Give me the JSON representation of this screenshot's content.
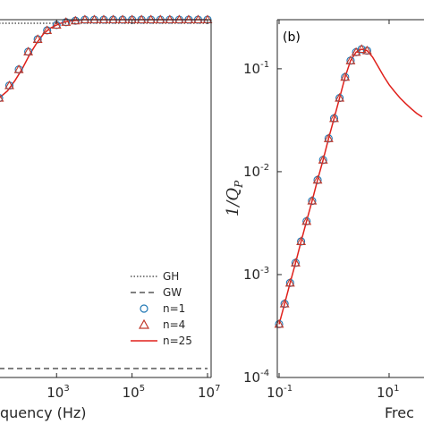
{
  "chart_data": [
    {
      "type": "line",
      "panel_label": "",
      "xlabel": "quency (Hz)",
      "ylabel": "",
      "x_scale": "log",
      "xlim": [
        30,
        10000000.0
      ],
      "ylim": [
        0,
        1.0
      ],
      "x_tick_values": [
        1000.0,
        100000.0,
        10000000.0
      ],
      "x_tick_labels": [
        {
          "base": "10",
          "exp": "3"
        },
        {
          "base": "10",
          "exp": "5"
        },
        {
          "base": "10",
          "exp": "7"
        }
      ],
      "legend": {
        "placement": "bottom-right",
        "entries": [
          {
            "label": "GH",
            "style": "dotted-line",
            "color": "#000000"
          },
          {
            "label": "GW",
            "style": "dashed-line",
            "color": "#000000"
          },
          {
            "label": "n=1",
            "style": "circle",
            "color": "#1f77b4"
          },
          {
            "label": "n=4",
            "style": "triangle",
            "color": "#c0392b"
          },
          {
            "label": "n=25",
            "style": "solid-line",
            "color": "#e0201b"
          }
        ]
      },
      "series": [
        {
          "name": "GH",
          "x": [
            30,
            10000000.0
          ],
          "y": [
            0.99,
            0.99
          ]
        },
        {
          "name": "GW",
          "x": [
            30,
            10000000.0
          ],
          "y": [
            0.02,
            0.02
          ]
        },
        {
          "name": "n=25",
          "x": [
            30,
            50,
            80,
            120,
            200,
            300,
            450,
            650,
            1000,
            1500,
            2500,
            5000,
            10000.0,
            100000.0,
            1000000.0,
            10000000.0
          ],
          "y": [
            0.78,
            0.8,
            0.83,
            0.86,
            0.905,
            0.935,
            0.96,
            0.975,
            0.985,
            0.993,
            0.997,
            1.0,
            1.0,
            1.0,
            1.0,
            1.0
          ]
        },
        {
          "name": "n=1",
          "x": [
            30,
            56.2,
            100,
            177.8,
            316.2,
            562.3,
            1000,
            1778,
            3162,
            5623,
            10000.0,
            17780.0,
            31620.0,
            56230.0,
            100000.0,
            177800.0,
            316200.0,
            562300.0,
            1000000.0,
            1778000.0,
            3162000.0,
            5623000.0,
            10000000.0
          ],
          "y": [
            0.78,
            0.815,
            0.86,
            0.91,
            0.945,
            0.97,
            0.985,
            0.993,
            0.997,
            1.0,
            1.0,
            1.0,
            1.0,
            1.0,
            1.0,
            1.0,
            1.0,
            1.0,
            1.0,
            1.0,
            1.0,
            1.0,
            1.0
          ]
        },
        {
          "name": "n=4",
          "x": [
            30,
            56.2,
            100,
            177.8,
            316.2,
            562.3,
            1000,
            1778,
            3162,
            5623,
            10000.0,
            17780.0,
            31620.0,
            56230.0,
            100000.0,
            177800.0,
            316200.0,
            562300.0,
            1000000.0,
            1778000.0,
            3162000.0,
            5623000.0,
            10000000.0
          ],
          "y": [
            0.78,
            0.815,
            0.86,
            0.91,
            0.945,
            0.97,
            0.985,
            0.993,
            0.997,
            1.0,
            1.0,
            1.0,
            1.0,
            1.0,
            1.0,
            1.0,
            1.0,
            1.0,
            1.0,
            1.0,
            1.0,
            1.0,
            1.0
          ]
        }
      ]
    },
    {
      "type": "line",
      "panel_label": "(b)",
      "xlabel": "Frec",
      "ylabel": "1/Q_P",
      "ylabel_main": "1/Q",
      "ylabel_sub": "P",
      "x_scale": "log",
      "y_scale": "log",
      "xlim": [
        0.1,
        40
      ],
      "ylim": [
        0.0001,
        0.3
      ],
      "x_tick_values": [
        0.1,
        10
      ],
      "x_tick_labels": [
        {
          "base": "10",
          "exp": "-1"
        },
        {
          "base": "10",
          "exp": "1"
        }
      ],
      "y_tick_values": [
        0.0001,
        0.001,
        0.01,
        0.1
      ],
      "y_tick_labels": [
        {
          "base": "10",
          "exp": "-4"
        },
        {
          "base": "10",
          "exp": "-3"
        },
        {
          "base": "10",
          "exp": "-2"
        },
        {
          "base": "10",
          "exp": "-1"
        }
      ],
      "series": [
        {
          "name": "n=25",
          "x": [
            0.1,
            0.1259,
            0.1585,
            0.1995,
            0.2512,
            0.3162,
            0.3981,
            0.5012,
            0.631,
            0.7943,
            1.0,
            1.259,
            1.585,
            1.995,
            2.512,
            3.162,
            3.981,
            5.012,
            6.31,
            7.943,
            10,
            12.59,
            15.85,
            19.95,
            25.12,
            31.62,
            39.81
          ],
          "y": [
            0.00033,
            0.00052,
            0.00083,
            0.0013,
            0.0021,
            0.0033,
            0.0052,
            0.0083,
            0.013,
            0.021,
            0.033,
            0.052,
            0.083,
            0.12,
            0.145,
            0.155,
            0.15,
            0.13,
            0.105,
            0.085,
            0.07,
            0.06,
            0.052,
            0.046,
            0.041,
            0.037,
            0.034
          ]
        },
        {
          "name": "n=1",
          "x": [
            0.1,
            0.1259,
            0.1585,
            0.1995,
            0.2512,
            0.3162,
            0.3981,
            0.5012,
            0.631,
            0.7943,
            1.0,
            1.259,
            1.585,
            1.995,
            2.512,
            3.162,
            3.981
          ],
          "y": [
            0.00033,
            0.00052,
            0.00083,
            0.0013,
            0.0021,
            0.0033,
            0.0052,
            0.0083,
            0.013,
            0.021,
            0.033,
            0.052,
            0.083,
            0.12,
            0.145,
            0.155,
            0.15
          ]
        },
        {
          "name": "n=4",
          "x": [
            0.1,
            0.1259,
            0.1585,
            0.1995,
            0.2512,
            0.3162,
            0.3981,
            0.5012,
            0.631,
            0.7943,
            1.0,
            1.259,
            1.585,
            1.995,
            2.512,
            3.162,
            3.981
          ],
          "y": [
            0.00033,
            0.00052,
            0.00083,
            0.0013,
            0.0021,
            0.0033,
            0.0052,
            0.0083,
            0.013,
            0.021,
            0.033,
            0.052,
            0.083,
            0.12,
            0.145,
            0.155,
            0.15
          ]
        }
      ]
    }
  ],
  "colors": {
    "axis": "#262626",
    "circle_marker": "#1f77b4",
    "triangle_marker": "#c0392b",
    "fit_line": "#e0201b"
  }
}
